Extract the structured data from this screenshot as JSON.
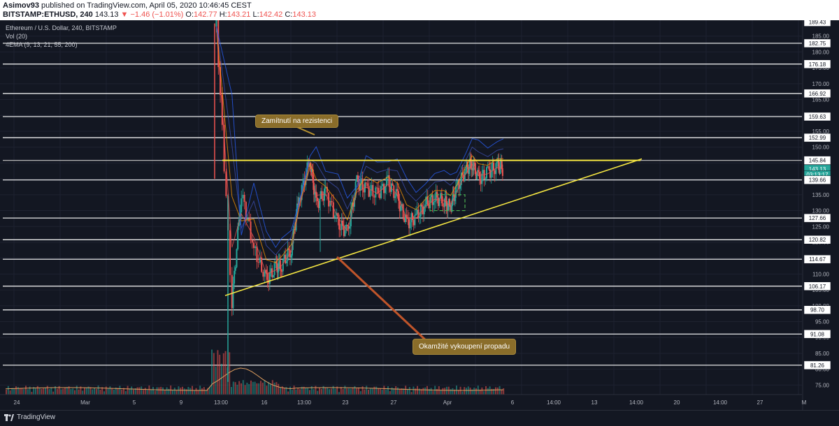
{
  "header": {
    "author": "Asimov93",
    "published": "published on TradingView.com, April 05, 2020 10:46:45 CEST",
    "symbol": "BITSTAMP:ETHUSD, 240",
    "last": "143.13",
    "change": "▼ −1.46 (−1.01%)",
    "o_label": "O:",
    "o": "142.77",
    "h_label": "H:",
    "h": "143.21",
    "l_label": "L:",
    "l": "142.42",
    "c_label": "C:",
    "c": "143.13"
  },
  "legend": {
    "title": "Ethereum / U.S. Dollar, 240, BITSTAMP",
    "vol": "Vol (20)",
    "ema": "4EMA (9, 13, 21, 55, 200)"
  },
  "annotations": {
    "rejection": "Zamítnutí na rezistenci",
    "buyback": "Okamžité vykoupení propadu"
  },
  "footer": {
    "brand": "TradingView"
  },
  "colors": {
    "background": "#131722",
    "level_line": "#ffffff",
    "resistance": "#f5e642",
    "support": "#f5e642",
    "up": "#26a69a",
    "down": "#ef5350",
    "callout": "#8a6d2a",
    "arrow": "#c0552a"
  },
  "chart_data": {
    "type": "candlestick",
    "title": "Ethereum / U.S. Dollar, 240, BITSTAMP",
    "y_scale": "price",
    "ylim": [
      72,
      190
    ],
    "y_ticks": [
      75,
      80,
      85,
      90,
      95,
      100,
      105,
      110,
      115,
      120,
      125,
      130,
      135,
      140,
      145,
      150,
      155,
      160,
      165,
      170,
      175,
      180,
      185
    ],
    "x_ticks": [
      "24",
      "Mar",
      "5",
      "9",
      "13:00",
      "16",
      "13:00",
      "23",
      "27",
      "Apr",
      "6",
      "14:00",
      "13",
      "14:00",
      "20",
      "14:00",
      "27",
      "M"
    ],
    "price_badges": [
      {
        "label": "189.43",
        "value": 189.43
      },
      {
        "label": "182.75",
        "value": 182.75
      },
      {
        "label": "176.18",
        "value": 176.18
      },
      {
        "label": "166.92",
        "value": 166.92
      },
      {
        "label": "159.63",
        "value": 159.63
      },
      {
        "label": "152.99",
        "value": 152.99
      },
      {
        "label": "145.84",
        "value": 145.84
      },
      {
        "label": "143.13",
        "value": 143.13
      },
      {
        "label": "03:13:17",
        "value": 141.3
      },
      {
        "label": "139.66",
        "value": 139.66
      },
      {
        "label": "127.66",
        "value": 127.66
      },
      {
        "label": "120.82",
        "value": 120.82
      },
      {
        "label": "114.67",
        "value": 114.67
      },
      {
        "label": "106.17",
        "value": 106.17
      },
      {
        "label": "98.70",
        "value": 98.7
      },
      {
        "label": "91.08",
        "value": 91.08
      },
      {
        "label": "81.26",
        "value": 81.26
      }
    ],
    "horizontal_levels": [
      182.75,
      176.18,
      166.92,
      159.63,
      152.99,
      145.84,
      139.66,
      127.66,
      120.82,
      114.67,
      106.17,
      98.7,
      91.08,
      81.26
    ],
    "resistance": 145.84,
    "price_path": [
      [
        0.02,
        188
      ],
      [
        0.12,
        101
      ],
      [
        0.18,
        136
      ],
      [
        0.26,
        118
      ],
      [
        0.34,
        108
      ],
      [
        0.4,
        112
      ],
      [
        0.44,
        113
      ],
      [
        0.5,
        118
      ],
      [
        0.55,
        134
      ],
      [
        0.62,
        146
      ],
      [
        0.66,
        132
      ],
      [
        0.72,
        136
      ],
      [
        0.8,
        126
      ],
      [
        0.86,
        123
      ],
      [
        0.92,
        139
      ],
      [
        0.98,
        137
      ],
      [
        1.05,
        135
      ],
      [
        1.12,
        139
      ],
      [
        1.18,
        134
      ],
      [
        1.24,
        126
      ],
      [
        1.3,
        128
      ],
      [
        1.36,
        132
      ],
      [
        1.42,
        134
      ],
      [
        1.48,
        133
      ],
      [
        1.52,
        131
      ],
      [
        1.56,
        137
      ],
      [
        1.62,
        143
      ],
      [
        1.66,
        145
      ],
      [
        1.7,
        140
      ],
      [
        1.76,
        142
      ],
      [
        1.82,
        144
      ],
      [
        1.86,
        143
      ]
    ]
  }
}
